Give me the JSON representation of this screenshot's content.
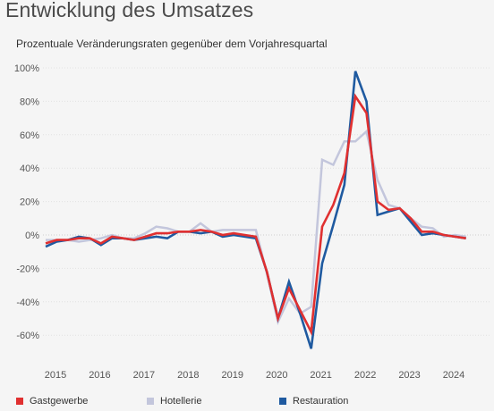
{
  "title": "Entwicklung des Umsatzes",
  "subtitle": "Prozentuale Veränderungsraten gegenüber dem Vorjahresquartal",
  "chart_data": {
    "type": "line",
    "ylim": [
      -70,
      100
    ],
    "xlim": [
      2015,
      2024.85
    ],
    "yticks": [
      100,
      80,
      60,
      40,
      20,
      0,
      -20,
      -40,
      -60
    ],
    "ytick_labels": [
      "100%",
      "80%",
      "60%",
      "40%",
      "20%",
      "0%",
      "-20%",
      "-40%",
      "-60%"
    ],
    "xticks": [
      2015,
      2016,
      2017,
      2018,
      2019,
      2020,
      2021,
      2022,
      2023,
      2024
    ],
    "xtick_labels": [
      "2015",
      "2016",
      "2017",
      "2018",
      "2019",
      "2020",
      "2021",
      "2022",
      "2023",
      "2024"
    ],
    "grid": true,
    "legend_position": "bottom",
    "x": [
      2015.0,
      2015.25,
      2015.5,
      2015.75,
      2016.0,
      2016.25,
      2016.5,
      2016.75,
      2017.0,
      2017.25,
      2017.5,
      2017.75,
      2018.0,
      2018.25,
      2018.5,
      2018.75,
      2019.0,
      2019.25,
      2019.5,
      2019.75,
      2020.0,
      2020.25,
      2020.5,
      2020.75,
      2021.0,
      2021.25,
      2021.5,
      2021.75,
      2022.0,
      2022.25,
      2022.5,
      2022.75,
      2023.0,
      2023.25,
      2023.5,
      2023.75,
      2024.0,
      2024.25,
      2024.5
    ],
    "series": [
      {
        "name": "Hotellerie",
        "color": "#c3c6dc",
        "values": [
          -3,
          -3,
          -3,
          -4,
          -3,
          -2,
          0,
          -2,
          -2,
          1,
          5,
          4,
          2,
          2,
          7,
          2,
          3,
          3,
          3,
          3,
          -23,
          -52,
          -38,
          -47,
          -43,
          45,
          42,
          56,
          56,
          62,
          33,
          18,
          16,
          10,
          5,
          4,
          -1,
          0,
          -1
        ]
      },
      {
        "name": "Restauration",
        "color": "#1f5aa0",
        "values": [
          -7,
          -4,
          -3,
          -1,
          -2,
          -6,
          -2,
          -2,
          -3,
          -2,
          -1,
          -2,
          2,
          2,
          1,
          2,
          -1,
          0,
          -1,
          -2,
          -22,
          -50,
          -28,
          -47,
          -68,
          -17,
          6,
          30,
          98,
          80,
          12,
          14,
          16,
          8,
          0,
          1,
          0,
          -1,
          -2
        ]
      },
      {
        "name": "Gastgewerbe",
        "color": "#e03030",
        "values": [
          -5,
          -3,
          -3,
          -2,
          -2,
          -5,
          -1,
          -2,
          -3,
          -1,
          1,
          1,
          2,
          2,
          3,
          2,
          0,
          1,
          0,
          -1,
          -22,
          -50,
          -32,
          -45,
          -58,
          5,
          18,
          37,
          83,
          73,
          20,
          15,
          16,
          10,
          2,
          2,
          0,
          -1,
          -2
        ]
      }
    ]
  },
  "legend": [
    {
      "label": "Gastgewerbe",
      "color": "#e03030"
    },
    {
      "label": "Hotellerie",
      "color": "#c3c6dc"
    },
    {
      "label": "Restauration",
      "color": "#1f5aa0"
    }
  ]
}
